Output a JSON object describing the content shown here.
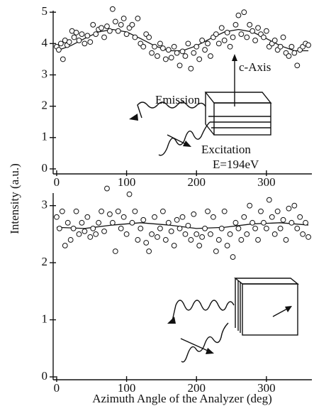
{
  "chart_data": [
    {
      "type": "scatter",
      "ylabel": "Intensity (a.u.)",
      "annotations": [
        "c-Axis",
        "Emission",
        "Excitation",
        "E=194eV"
      ],
      "xlim": [
        -5,
        365
      ],
      "xticks": [
        0,
        100,
        200,
        300
      ],
      "ylim": [
        -0.16,
        5.05
      ],
      "yticks": [
        0,
        1,
        2,
        3,
        4,
        5
      ],
      "points": {
        "x": [
          0,
          3,
          6,
          9,
          12,
          15,
          18,
          22,
          25,
          28,
          32,
          36,
          40,
          44,
          48,
          52,
          56,
          60,
          64,
          68,
          72,
          76,
          80,
          84,
          88,
          92,
          96,
          100,
          104,
          108,
          112,
          116,
          120,
          124,
          128,
          132,
          136,
          140,
          144,
          148,
          152,
          156,
          160,
          164,
          168,
          172,
          176,
          180,
          184,
          188,
          192,
          196,
          200,
          204,
          208,
          212,
          216,
          220,
          224,
          228,
          232,
          236,
          240,
          244,
          248,
          252,
          256,
          260,
          264,
          268,
          272,
          276,
          280,
          284,
          288,
          292,
          296,
          300,
          304,
          308,
          312,
          316,
          320,
          324,
          328,
          332,
          336,
          340,
          344,
          348,
          352,
          356,
          360
        ],
        "y": [
          3.9,
          3.8,
          4.0,
          3.5,
          4.1,
          3.95,
          4.05,
          4.4,
          4.2,
          4.35,
          4.1,
          4.3,
          4.0,
          4.25,
          4.05,
          4.6,
          4.3,
          4.45,
          4.5,
          4.2,
          4.55,
          4.4,
          5.1,
          4.7,
          4.4,
          4.6,
          4.8,
          4.3,
          4.5,
          4.6,
          4.2,
          4.8,
          4.0,
          3.9,
          4.3,
          4.2,
          3.7,
          3.9,
          3.6,
          4.0,
          3.85,
          3.5,
          3.8,
          3.55,
          3.9,
          3.7,
          3.3,
          3.75,
          3.6,
          4.0,
          3.2,
          3.7,
          3.9,
          3.5,
          4.1,
          3.8,
          4.0,
          3.6,
          4.2,
          4.3,
          4.0,
          4.5,
          4.1,
          4.35,
          3.9,
          4.2,
          4.6,
          4.9,
          4.3,
          5.0,
          4.2,
          4.6,
          4.4,
          4.1,
          4.5,
          4.3,
          4.2,
          4.4,
          3.9,
          4.0,
          4.1,
          3.8,
          3.9,
          4.2,
          3.7,
          3.6,
          3.9,
          3.7,
          3.3,
          3.8,
          3.9,
          4.0,
          3.95
        ]
      },
      "fit": {
        "x": [
          0,
          20,
          40,
          60,
          80,
          100,
          120,
          140,
          160,
          180,
          200,
          220,
          240,
          260,
          280,
          300,
          320,
          340,
          360
        ],
        "y": [
          3.77,
          3.93,
          4.16,
          4.37,
          4.45,
          4.37,
          4.16,
          3.93,
          3.77,
          3.77,
          3.93,
          4.16,
          4.37,
          4.45,
          4.37,
          4.16,
          3.93,
          3.77,
          3.77
        ]
      }
    },
    {
      "type": "scatter",
      "xlabel": "Azimuth Angle of the Analyzer (deg)",
      "xlim": [
        -5,
        365
      ],
      "xticks": [
        0,
        100,
        200,
        300
      ],
      "ylim": [
        -0.05,
        3.22
      ],
      "yticks": [
        0,
        1,
        2,
        3
      ],
      "points": {
        "x": [
          0,
          4,
          8,
          12,
          16,
          20,
          24,
          28,
          32,
          36,
          40,
          44,
          48,
          52,
          56,
          60,
          64,
          68,
          72,
          76,
          80,
          84,
          88,
          92,
          96,
          100,
          104,
          108,
          112,
          116,
          120,
          124,
          128,
          132,
          136,
          140,
          144,
          148,
          152,
          156,
          160,
          164,
          168,
          172,
          176,
          180,
          184,
          188,
          192,
          196,
          200,
          204,
          208,
          212,
          216,
          220,
          224,
          228,
          232,
          236,
          240,
          244,
          248,
          252,
          256,
          260,
          264,
          268,
          272,
          276,
          280,
          284,
          288,
          292,
          296,
          300,
          304,
          308,
          312,
          316,
          320,
          324,
          328,
          332,
          336,
          340,
          344,
          348,
          352,
          356,
          360
        ],
        "y": [
          2.8,
          2.6,
          2.9,
          2.3,
          2.7,
          2.4,
          2.6,
          2.9,
          2.5,
          2.7,
          2.55,
          2.8,
          2.45,
          2.6,
          2.5,
          2.7,
          2.9,
          2.55,
          3.3,
          2.85,
          2.7,
          2.2,
          2.9,
          2.6,
          2.8,
          2.5,
          3.2,
          2.7,
          2.9,
          2.4,
          2.6,
          2.75,
          2.35,
          2.2,
          2.5,
          2.8,
          2.45,
          2.6,
          2.9,
          2.4,
          2.7,
          2.55,
          2.3,
          2.75,
          2.6,
          2.8,
          2.5,
          2.65,
          2.4,
          2.85,
          2.5,
          2.3,
          2.45,
          2.6,
          2.9,
          2.5,
          2.8,
          2.2,
          2.4,
          2.6,
          2.9,
          2.3,
          2.5,
          2.1,
          2.7,
          2.6,
          2.4,
          2.8,
          2.5,
          3.0,
          2.7,
          2.6,
          2.4,
          2.9,
          2.7,
          2.6,
          3.1,
          2.8,
          2.5,
          2.9,
          2.6,
          2.75,
          2.4,
          2.95,
          2.7,
          3.0,
          2.6,
          2.8,
          2.5,
          2.7,
          2.45
        ]
      },
      "fit": {
        "x": [
          0,
          40,
          80,
          120,
          160,
          200,
          240,
          280,
          320,
          360
        ],
        "y": [
          2.62,
          2.6,
          2.66,
          2.7,
          2.66,
          2.6,
          2.62,
          2.68,
          2.7,
          2.66
        ]
      }
    }
  ]
}
